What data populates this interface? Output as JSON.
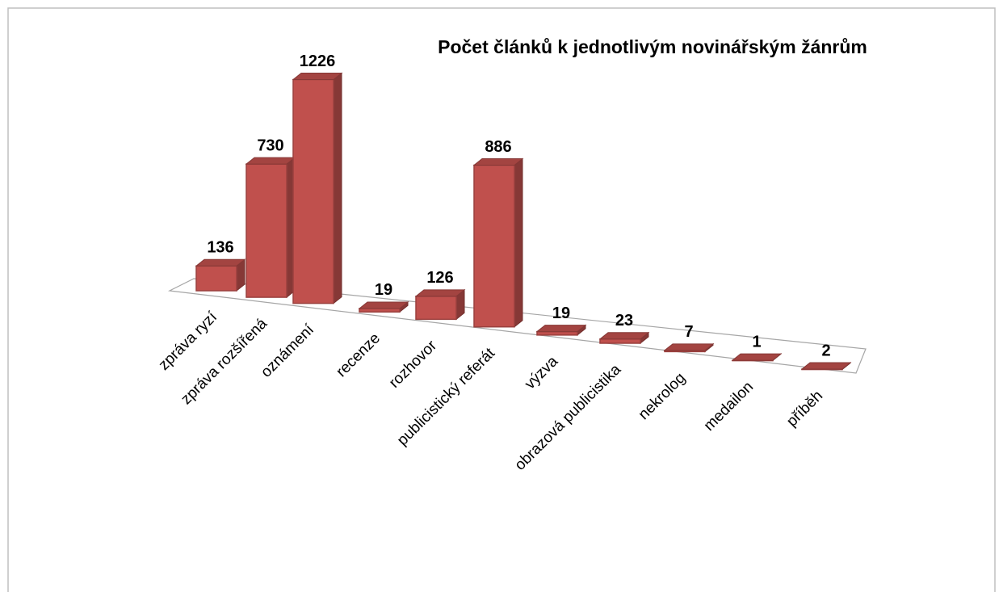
{
  "chart_data": {
    "type": "bar",
    "title": "Počet článků k jednotlivým novinářským žánrům",
    "categories": [
      "zpráva ryzí",
      "zpráva rozšířená",
      "oznámení",
      "recenze",
      "rozhovor",
      "publicistický referát",
      "výzva",
      "obrazová publicistika",
      "nekrolog",
      "medailon",
      "příběh"
    ],
    "values": [
      136,
      730,
      1226,
      19,
      126,
      886,
      19,
      23,
      7,
      1,
      2
    ],
    "color": "#c0504d"
  }
}
